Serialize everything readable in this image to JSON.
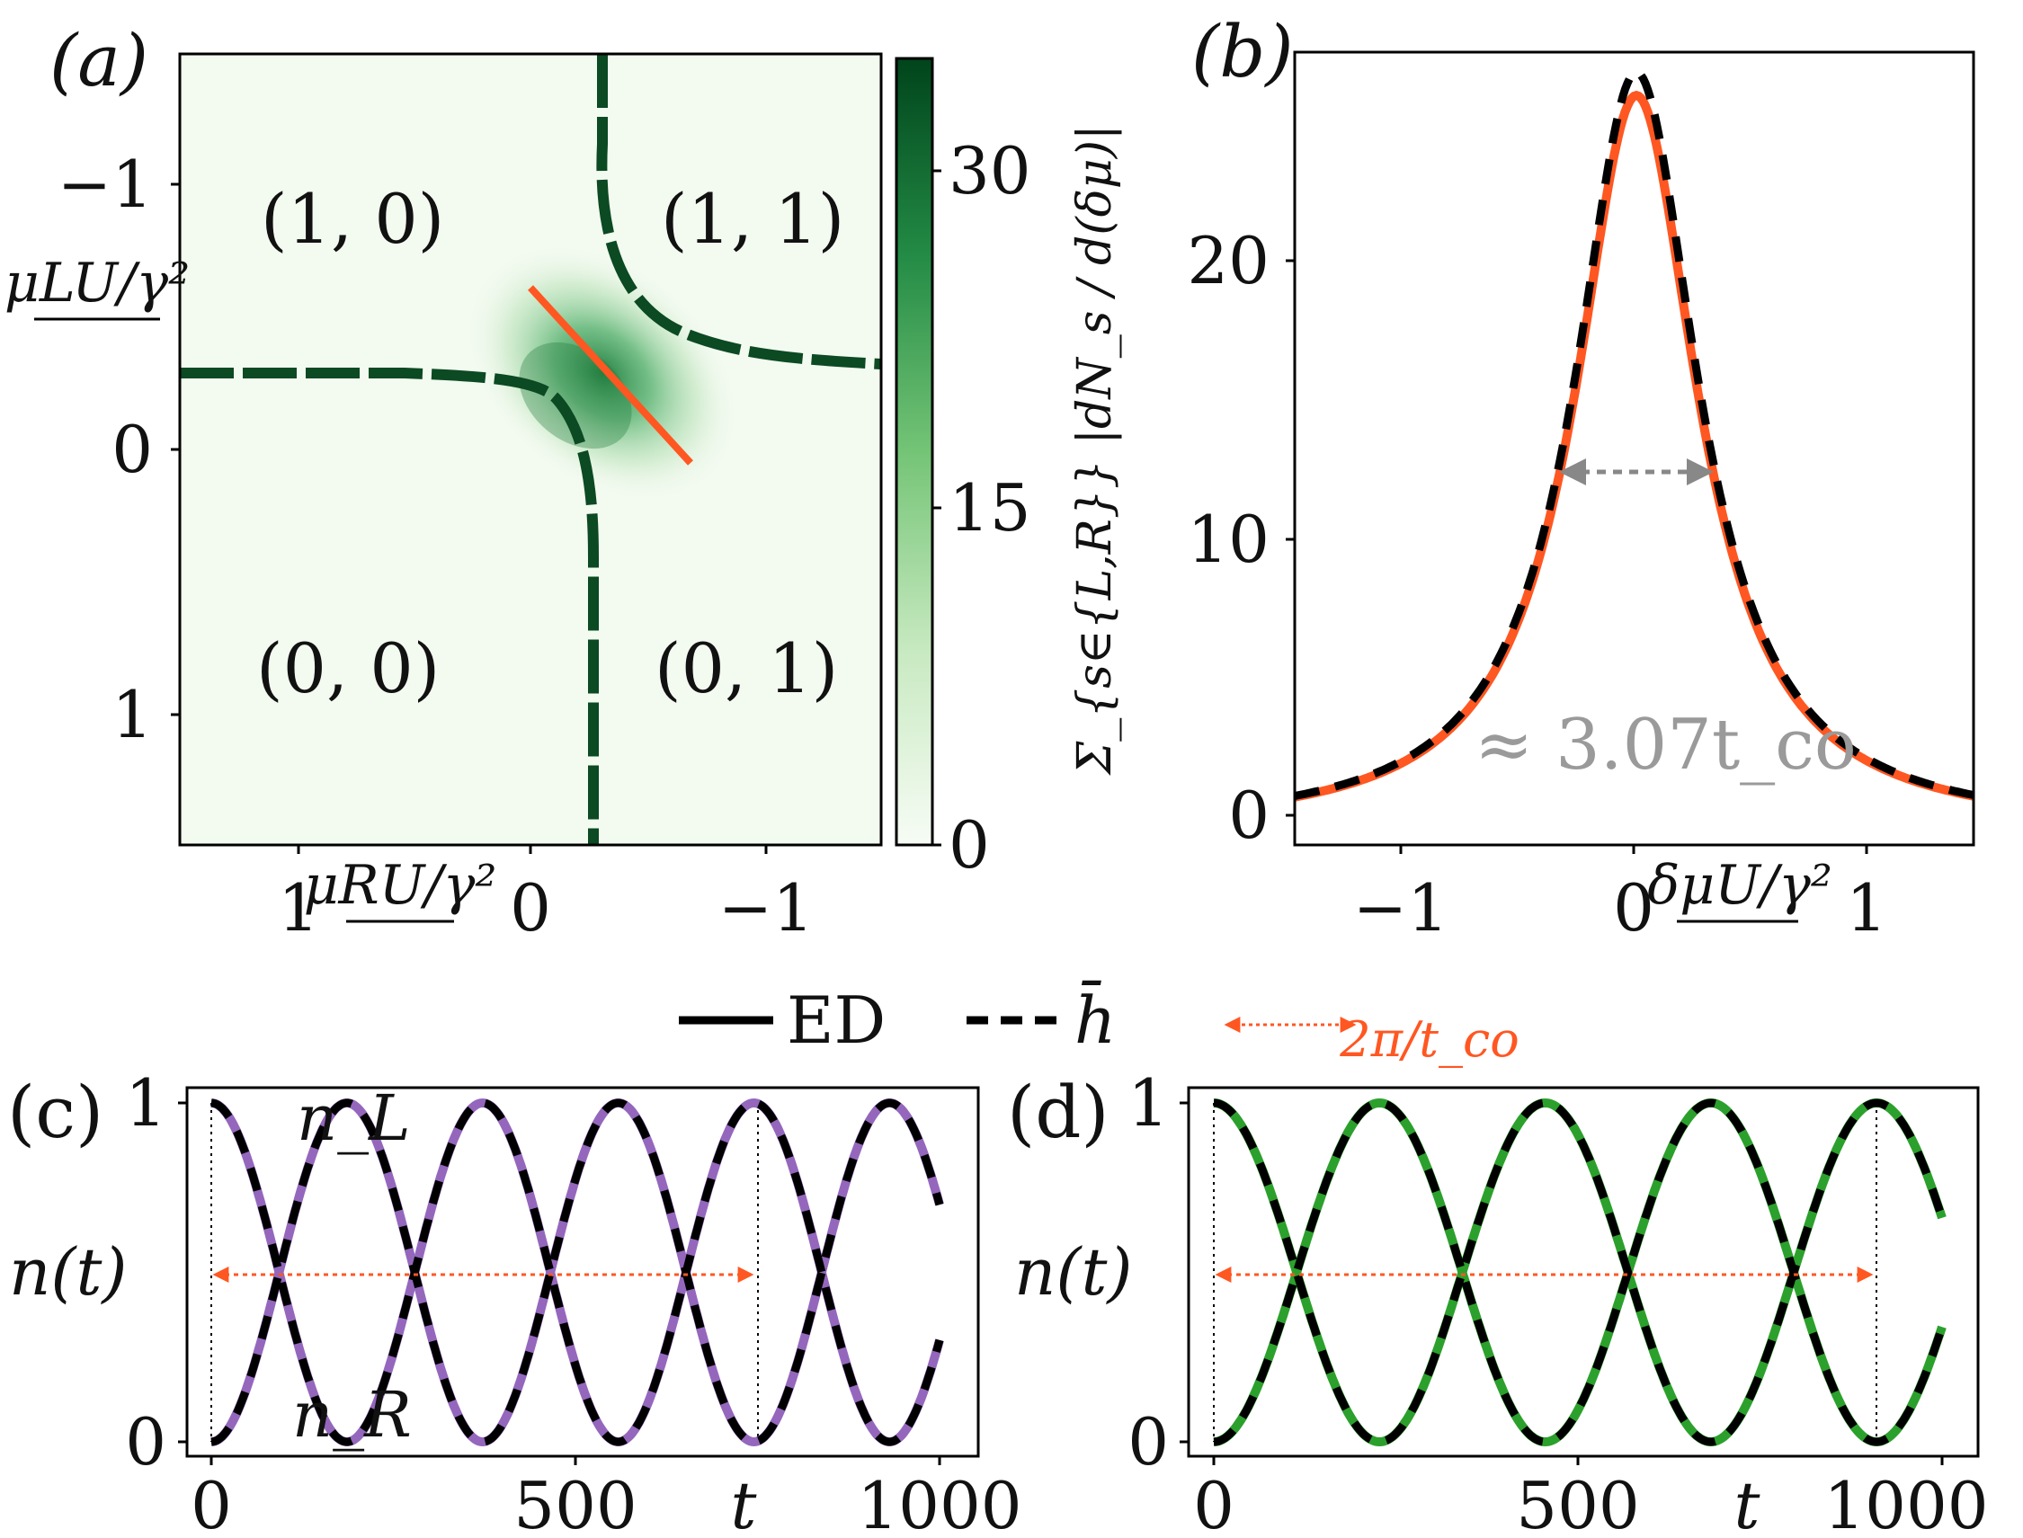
{
  "chart_data": [
    {
      "panel_label": "(a)",
      "type": "heatmap",
      "xlabel": "μRU/γ²",
      "ylabel": "μLU/γ²",
      "x_ticks": [
        "1",
        "0",
        "−1"
      ],
      "y_ticks": [
        "−1",
        "0",
        "1"
      ],
      "xlim": [
        1.5,
        -1.5
      ],
      "ylim": [
        -1.5,
        1.5
      ],
      "colorbar": {
        "ticks": [
          "0",
          "15",
          "30"
        ],
        "range": [
          0,
          35
        ],
        "cmap_low": "#f3faf0",
        "cmap_high": "#00441b"
      },
      "region_labels": [
        "(1, 0)",
        "(1, 1)",
        "(0, 0)",
        "(0, 1)"
      ],
      "dashed_boundary_color": "#0b4a22",
      "cut_line_color": "#ff5722"
    },
    {
      "panel_label": "(b)",
      "type": "line",
      "xlabel": "δμU/γ²",
      "ylabel": "Σ_{s∈{L,R}} |dN_s / d(δμ)|",
      "x_ticks": [
        "−1",
        "0",
        "1"
      ],
      "y_ticks": [
        "0",
        "10",
        "20"
      ],
      "xlim": [
        -1.5,
        1.5
      ],
      "ylim": [
        -0.5,
        27
      ],
      "peak_ed": 25.5,
      "peak_hbar": 26.3,
      "lorentz_half_width": 0.33,
      "fwhm_annotation": "≈ 3.07t_co",
      "series": [
        {
          "name": "ED",
          "color": "#ff5722"
        },
        {
          "name": "h̄",
          "color": "#000000"
        }
      ]
    },
    {
      "panel_label": "(c)",
      "type": "line",
      "xlabel": "t",
      "ylabel": "n(t)",
      "x_ticks": [
        "0",
        "500",
        "1000"
      ],
      "y_ticks": [
        "0",
        "1"
      ],
      "xlim": [
        0,
        1000
      ],
      "ylim": [
        0,
        1
      ],
      "period": 745,
      "color": "#9467bd",
      "series_labels": [
        "n_L",
        "n_R"
      ]
    },
    {
      "panel_label": "(d)",
      "type": "line",
      "xlabel": "t",
      "ylabel": "n(t)",
      "x_ticks": [
        "0",
        "500",
        "1000"
      ],
      "y_ticks": [
        "0",
        "1"
      ],
      "xlim": [
        0,
        1000
      ],
      "ylim": [
        0,
        1
      ],
      "period": 910,
      "color": "#2ca02c"
    }
  ],
  "legend": {
    "solid_label": "ED",
    "dashed_label": "h̄",
    "arrow_label": "2π/t_co",
    "arrow_color": "#ff5722"
  }
}
